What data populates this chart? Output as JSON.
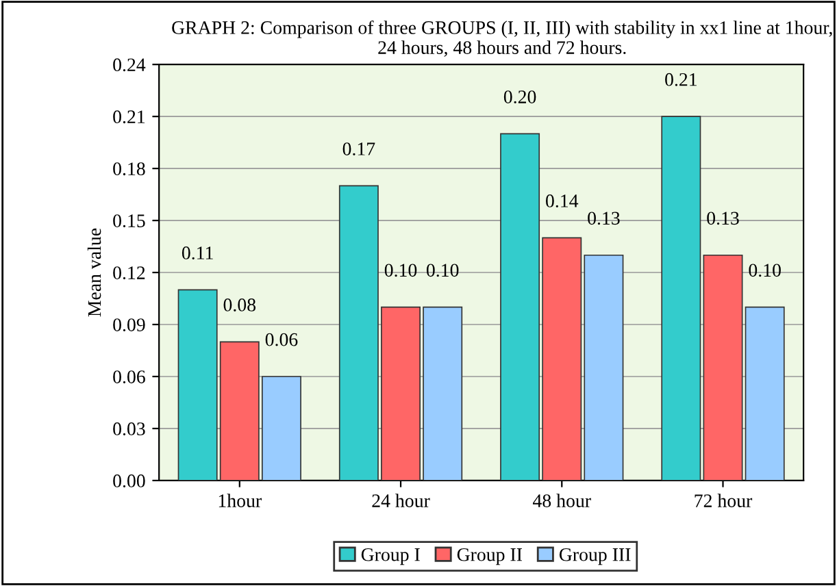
{
  "chart_data": {
    "type": "bar",
    "title": "GRAPH 2: Comparison of three GROUPS (I, II, III) with stability in xx1 line at 1hour, 24 hours, 48 hours and 72 hours.",
    "ylabel": "Mean value",
    "categories": [
      "1hour",
      "24 hour",
      "48 hour",
      "72 hour"
    ],
    "series": [
      {
        "name": "Group I",
        "color": "#33cccc",
        "values": [
          0.11,
          0.17,
          0.2,
          0.21
        ],
        "value_labels": [
          "0.11",
          "0.17",
          "0.20",
          "0.21"
        ]
      },
      {
        "name": "Group II",
        "color": "#ff6666",
        "values": [
          0.08,
          0.1,
          0.14,
          0.13
        ],
        "value_labels": [
          "0.08",
          "0.10",
          "0.14",
          "0.13"
        ]
      },
      {
        "name": "Group III",
        "color": "#99ccff",
        "values": [
          0.06,
          0.1,
          0.13,
          0.1
        ],
        "value_labels": [
          "0.06",
          "0.10",
          "0.13",
          "0.10"
        ]
      }
    ],
    "ylim": [
      0,
      0.24
    ],
    "yticks": [
      {
        "value": 0,
        "label": "0.00"
      },
      0.03,
      0.06,
      0.09,
      0.12,
      0.15,
      0.18,
      0.21,
      0.24
    ],
    "grid": "y",
    "legend": "bottom"
  }
}
